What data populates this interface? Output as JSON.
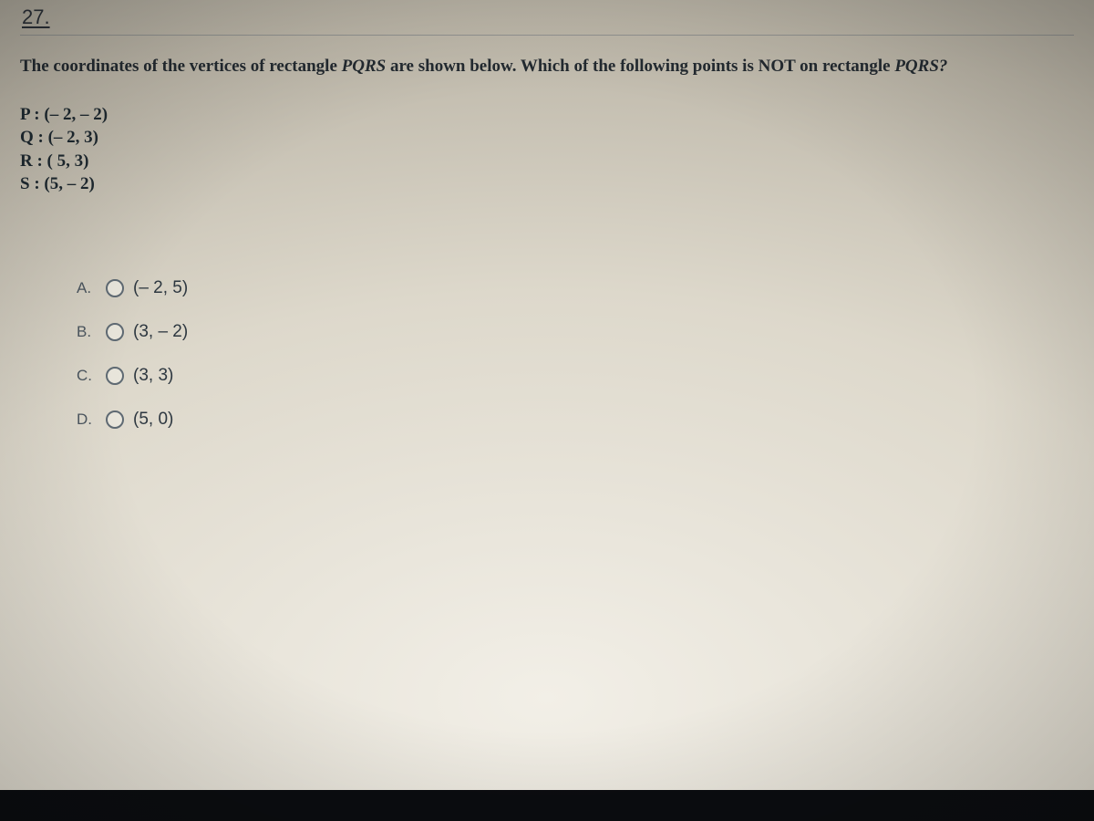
{
  "question_number": "27.",
  "prompt_pre": "The coordinates of the vertices of rectangle ",
  "prompt_em1": "PQRS",
  "prompt_mid": " are shown below. Which of the following points is NOT on rectangle ",
  "prompt_em2": "PQRS?",
  "vertices": [
    "P : (– 2, – 2)",
    "Q : (– 2, 3)",
    "R : ( 5, 3)",
    "S : (5, – 2)"
  ],
  "choices": [
    {
      "letter": "A.",
      "text": "(– 2, 5)"
    },
    {
      "letter": "B.",
      "text": "(3, – 2)"
    },
    {
      "letter": "C.",
      "text": "(3, 3)"
    },
    {
      "letter": "D.",
      "text": "(5, 0)"
    }
  ]
}
